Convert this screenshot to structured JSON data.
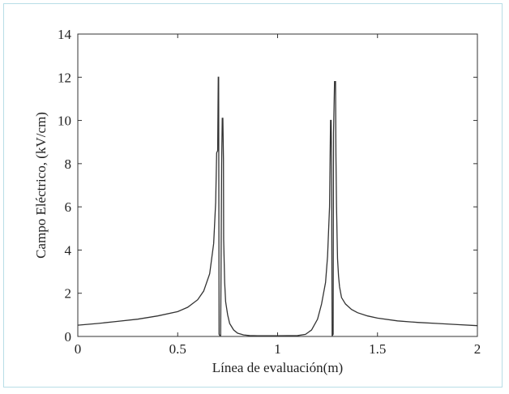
{
  "chart_data": {
    "type": "line",
    "title": "",
    "xlabel": "Línea de evaluación(m)",
    "ylabel": "Campo Eléctrico, (kV/cm)",
    "xlim": [
      0,
      2
    ],
    "ylim": [
      0,
      14
    ],
    "xticks": [
      "0",
      "0.5",
      "1",
      "1.5",
      "2"
    ],
    "yticks": [
      "0",
      "2",
      "4",
      "6",
      "8",
      "10",
      "12",
      "14"
    ],
    "grid": false,
    "line_color": "#333333",
    "series": [
      {
        "x": [
          0,
          0.1,
          0.2,
          0.3,
          0.4,
          0.5,
          0.55,
          0.6,
          0.63,
          0.66,
          0.68,
          0.69,
          0.695,
          0.7,
          0.703,
          0.705,
          0.707,
          0.71,
          0.715,
          0.72,
          0.723,
          0.726,
          0.729,
          0.73,
          0.735,
          0.74,
          0.75,
          0.76,
          0.78,
          0.8,
          0.83,
          0.86,
          0.9,
          1.0,
          1.1,
          1.14,
          1.17,
          1.2,
          1.22,
          1.24,
          1.25,
          1.26,
          1.265,
          1.268,
          1.27,
          1.273,
          1.275,
          1.278,
          1.28,
          1.285,
          1.29,
          1.292,
          1.295,
          1.298,
          1.3,
          1.305,
          1.31,
          1.32,
          1.34,
          1.37,
          1.4,
          1.45,
          1.5,
          1.6,
          1.7,
          1.8,
          1.9,
          2.0
        ],
        "y": [
          0.52,
          0.6,
          0.7,
          0.8,
          0.95,
          1.15,
          1.35,
          1.7,
          2.1,
          2.9,
          4.3,
          6.2,
          8.5,
          8.6,
          12.0,
          12.0,
          0.1,
          0.05,
          0.05,
          8.0,
          10.1,
          10.1,
          8.2,
          4.5,
          2.5,
          1.6,
          1.0,
          0.6,
          0.3,
          0.15,
          0.07,
          0.04,
          0.03,
          0.03,
          0.04,
          0.1,
          0.3,
          0.8,
          1.5,
          2.5,
          3.7,
          6.0,
          10.0,
          10.0,
          7.9,
          0.05,
          0.05,
          0.1,
          9.4,
          11.8,
          11.8,
          8.4,
          6.0,
          4.5,
          3.6,
          2.8,
          2.3,
          1.8,
          1.5,
          1.25,
          1.1,
          0.95,
          0.85,
          0.72,
          0.65,
          0.6,
          0.55,
          0.5
        ]
      }
    ]
  }
}
